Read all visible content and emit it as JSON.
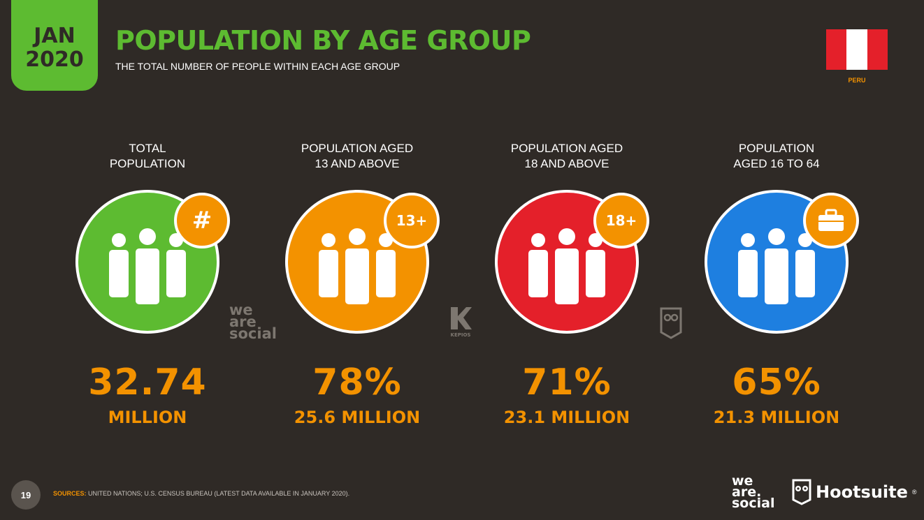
{
  "header": {
    "month": "JAN",
    "year": "2020",
    "title": "POPULATION BY AGE GROUP",
    "subtitle": "THE TOTAL NUMBER OF PEOPLE WITHIN EACH AGE GROUP"
  },
  "flag": {
    "country": "PERU",
    "colors": [
      "#e4202a",
      "#ffffff",
      "#e4202a"
    ]
  },
  "stats": [
    {
      "label": "TOTAL\nPOPULATION",
      "badge": "#",
      "badge_icon": "hash-icon",
      "value": "32.74",
      "sub": "MILLION",
      "color": "#5dbb31"
    },
    {
      "label": "POPULATION AGED\n13 AND ABOVE",
      "badge": "13+",
      "badge_icon": "age-13-plus-icon",
      "value": "78%",
      "sub": "25.6 MILLION",
      "color": "#f39200"
    },
    {
      "label": "POPULATION AGED\n18 AND ABOVE",
      "badge": "18+",
      "badge_icon": "age-18-plus-icon",
      "value": "71%",
      "sub": "23.1 MILLION",
      "color": "#e4202a"
    },
    {
      "label": "POPULATION\nAGED 16 TO 64",
      "badge": "",
      "badge_icon": "briefcase-icon",
      "value": "65%",
      "sub": "21.3 MILLION",
      "color": "#1e7fe0"
    }
  ],
  "watermarks": {
    "social_line1": "we",
    "social_line2": "are",
    "social_line3": "social",
    "kepios": "KEPIOS"
  },
  "footer": {
    "page": "19",
    "sources_label": "SOURCES:",
    "sources_text": "UNITED NATIONS; U.S. CENSUS BUREAU (LATEST DATA AVAILABLE IN JANUARY 2020).",
    "logo_social_1": "we",
    "logo_social_2": "are.",
    "logo_social_3": "social",
    "logo_hootsuite": "Hootsuite",
    "registered": "®"
  },
  "accent": "#f39200",
  "brand_green": "#5dbb31",
  "background": "#2f2a26"
}
